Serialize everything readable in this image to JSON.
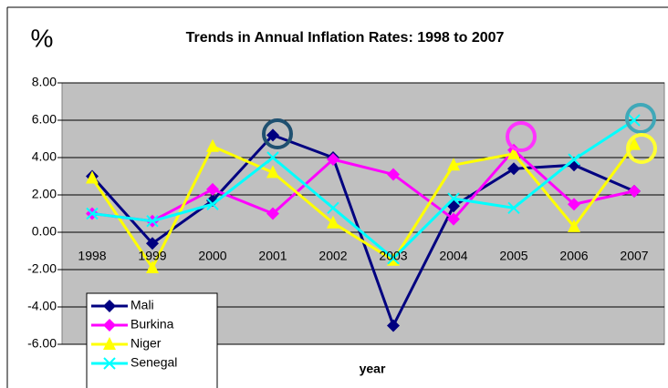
{
  "chart_data": {
    "type": "line",
    "title": "Trends in Annual Inflation Rates: 1998 to 2007",
    "y_label": "%",
    "x_label": "year",
    "categories": [
      "1998",
      "1999",
      "2000",
      "2001",
      "2002",
      "2003",
      "2004",
      "2005",
      "2006",
      "2007"
    ],
    "series": [
      {
        "name": "Mali",
        "color": "#000080",
        "marker": "diamond",
        "values": [
          3.0,
          -0.6,
          1.7,
          5.2,
          4.0,
          -5.0,
          1.4,
          3.4,
          3.6,
          2.2
        ]
      },
      {
        "name": "Burkina",
        "color": "#ff00ff",
        "marker": "diamond",
        "values": [
          1.0,
          0.6,
          2.3,
          1.0,
          3.9,
          3.1,
          0.7,
          4.4,
          1.5,
          2.2
        ]
      },
      {
        "name": "Niger",
        "color": "#ffff00",
        "marker": "triangle",
        "values": [
          2.9,
          -1.9,
          4.6,
          3.2,
          0.5,
          -1.5,
          3.6,
          4.2,
          0.3,
          4.7
        ]
      },
      {
        "name": "Senegal",
        "color": "#00ffff",
        "marker": "x",
        "values": [
          1.0,
          0.6,
          1.5,
          4.0,
          1.3,
          -1.4,
          1.8,
          1.3,
          3.9,
          6.0
        ]
      }
    ],
    "ylim": [
      -6,
      8
    ],
    "yticks": [
      {
        "value": -6,
        "label": "-6.00"
      },
      {
        "value": -4,
        "label": "-4.00"
      },
      {
        "value": -2,
        "label": "-2.00"
      },
      {
        "value": 0,
        "label": "0.00"
      },
      {
        "value": 2,
        "label": "2.00"
      },
      {
        "value": 4,
        "label": "4.00"
      },
      {
        "value": 6,
        "label": "6.00"
      },
      {
        "value": 8,
        "label": "8.00"
      }
    ],
    "grid": true,
    "legend": "lower left"
  }
}
